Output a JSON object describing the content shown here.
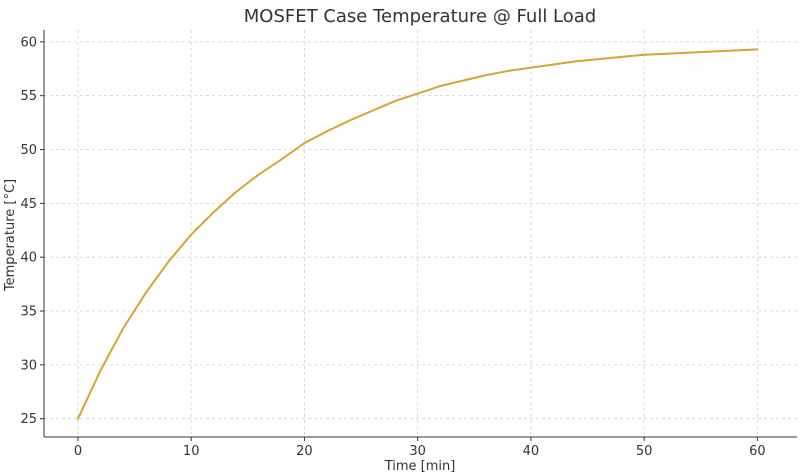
{
  "chart_data": {
    "type": "line",
    "title": "MOSFET Case Temperature @ Full Load",
    "xlabel": "Time [min]",
    "ylabel": "Temperature [°C]",
    "xlim": [
      -3,
      63.5
    ],
    "ylim": [
      23.3,
      61.1
    ],
    "xticks": [
      0,
      10,
      20,
      30,
      40,
      50,
      60
    ],
    "yticks": [
      25,
      30,
      35,
      40,
      45,
      50,
      55,
      60
    ],
    "grid": true,
    "line_color": "#D4A535",
    "series": [
      {
        "x": [
          0,
          2,
          4,
          6,
          8,
          10,
          12,
          14,
          16,
          18,
          20,
          22,
          24,
          26,
          28,
          30,
          32,
          34,
          36,
          38,
          40,
          42,
          44,
          46,
          48,
          50,
          52,
          54,
          56,
          58,
          60
        ],
        "values": [
          25.0,
          29.5,
          33.4,
          36.7,
          39.6,
          42.1,
          44.2,
          46.1,
          47.7,
          49.1,
          50.6,
          51.7,
          52.7,
          53.6,
          54.5,
          55.2,
          55.9,
          56.4,
          56.9,
          57.3,
          57.6,
          57.9,
          58.2,
          58.4,
          58.6,
          58.8,
          58.9,
          59.0,
          59.1,
          59.2,
          59.3
        ]
      }
    ]
  }
}
